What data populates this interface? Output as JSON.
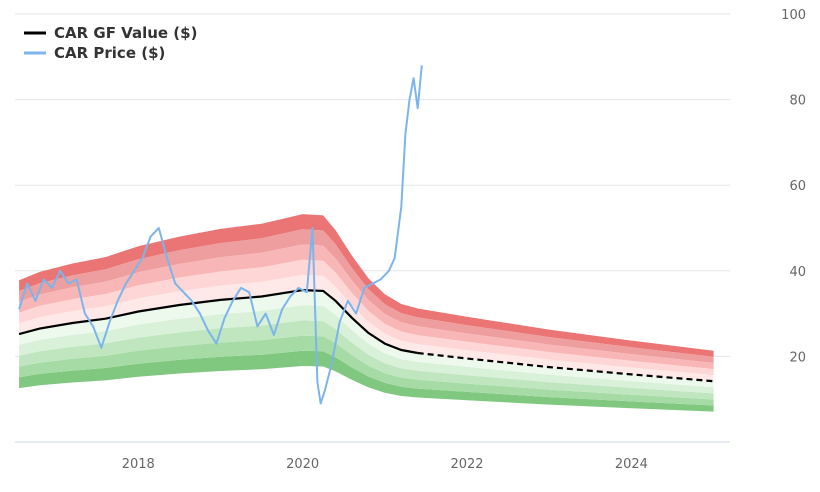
{
  "chart_data": {
    "type": "line",
    "xlim": [
      2016.5,
      2025.2
    ],
    "ylim": [
      0,
      100
    ],
    "x_ticks": [
      "2018",
      "2020",
      "2022",
      "2024"
    ],
    "x_tick_values": [
      2018,
      2020,
      2022,
      2024
    ],
    "y_ticks": [
      "20",
      "40",
      "60",
      "80",
      "100"
    ],
    "y_tick_values": [
      20,
      40,
      60,
      80,
      100
    ],
    "grid": "horizontal",
    "legend_position": "top-left",
    "legend": [
      {
        "label": "CAR GF Value ($)",
        "color": "#000000"
      },
      {
        "label": "CAR Price ($)",
        "color": "#7cb5ec"
      }
    ],
    "gf_value": {
      "name": "CAR GF Value ($)",
      "color": "#000000",
      "x": [
        2016.55,
        2016.8,
        2017.2,
        2017.6,
        2018.0,
        2018.5,
        2019.0,
        2019.5,
        2020.0,
        2020.25,
        2020.4,
        2020.6,
        2020.8,
        2021.0,
        2021.2,
        2021.4,
        2022.0,
        2023.0,
        2024.0,
        2025.0
      ],
      "y": [
        25.2,
        26.5,
        27.8,
        28.8,
        30.5,
        32.0,
        33.2,
        34.0,
        35.5,
        35.3,
        33.0,
        29.0,
        25.5,
        23.0,
        21.5,
        20.8,
        19.5,
        17.5,
        15.8,
        14.2
      ],
      "estimate_from": 2021.4
    },
    "bands": {
      "upper_colors": [
        "#ffe8e8",
        "#ffd6d6",
        "#f8b6b6",
        "#ee9e9e",
        "#eb7575"
      ],
      "lower_colors": [
        "#eef9ee",
        "#d9f0d9",
        "#c0e6c0",
        "#a6dba6",
        "#80c880"
      ],
      "upper_offsets": [
        0.1,
        0.2,
        0.3,
        0.4,
        0.5
      ],
      "lower_offsets": [
        0.1,
        0.2,
        0.3,
        0.4,
        0.5
      ]
    },
    "price": {
      "name": "CAR Price ($)",
      "color": "#7cb5ec",
      "x": [
        2016.55,
        2016.65,
        2016.75,
        2016.85,
        2016.95,
        2017.05,
        2017.15,
        2017.25,
        2017.35,
        2017.45,
        2017.55,
        2017.65,
        2017.75,
        2017.85,
        2017.95,
        2018.05,
        2018.15,
        2018.25,
        2018.35,
        2018.45,
        2018.55,
        2018.65,
        2018.75,
        2018.85,
        2018.95,
        2019.05,
        2019.15,
        2019.25,
        2019.35,
        2019.45,
        2019.55,
        2019.65,
        2019.75,
        2019.85,
        2019.95,
        2020.05,
        2020.12,
        2020.18,
        2020.22,
        2020.27,
        2020.35,
        2020.45,
        2020.55,
        2020.65,
        2020.75,
        2020.85,
        2020.95,
        2021.05,
        2021.12,
        2021.2,
        2021.25,
        2021.3,
        2021.35,
        2021.4,
        2021.45
      ],
      "y": [
        31,
        37,
        33,
        38,
        36,
        40,
        37,
        38,
        30,
        27,
        22,
        28,
        33,
        37,
        40,
        43,
        48,
        50,
        43,
        37,
        35,
        33,
        30,
        26,
        23,
        29,
        33,
        36,
        35,
        27,
        30,
        25,
        31,
        34,
        36,
        35,
        50,
        14,
        9,
        12,
        18,
        28,
        33,
        30,
        36,
        37,
        38,
        40,
        43,
        55,
        72,
        80,
        85,
        78,
        88
      ]
    }
  }
}
